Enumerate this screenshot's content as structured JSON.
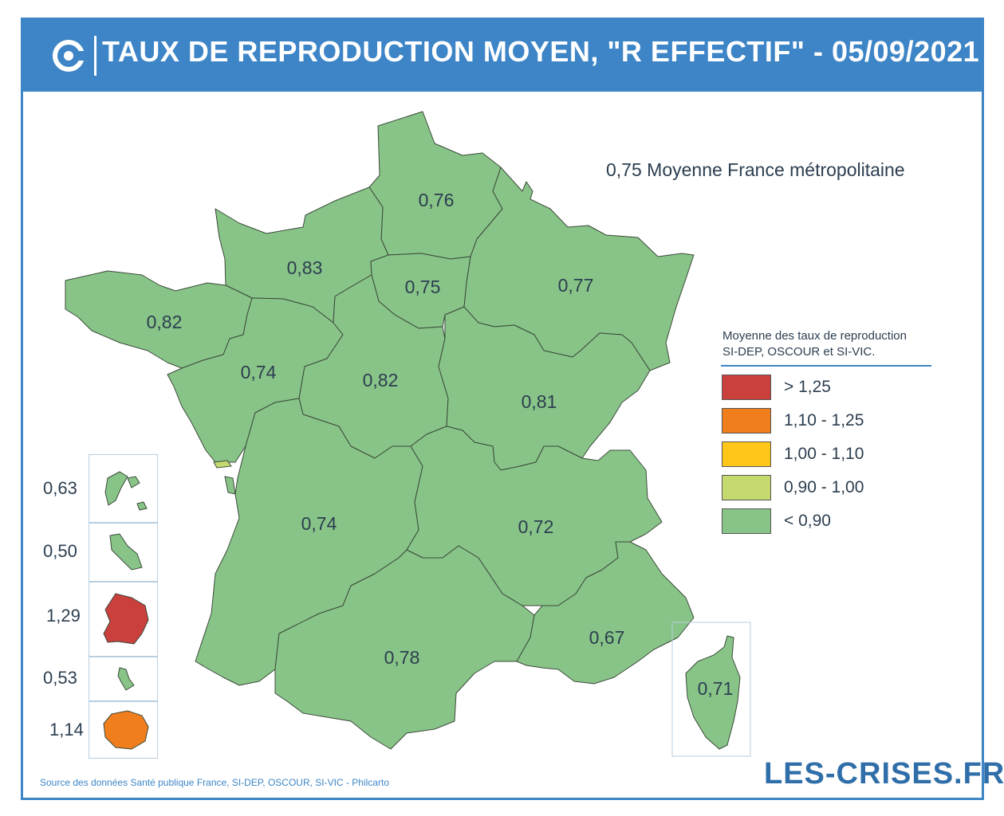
{
  "header": {
    "title": "TAUX DE REPRODUCTION MOYEN, \"R EFFECTIF\" - 05/09/2021"
  },
  "national_average": "0,75 Moyenne France métropolitaine",
  "regions": [
    {
      "name": "Hauts-de-France",
      "value": "0,76",
      "category": "< 0,90"
    },
    {
      "name": "Normandie",
      "value": "0,83",
      "category": "< 0,90"
    },
    {
      "name": "Île-de-France",
      "value": "0,75",
      "category": "< 0,90"
    },
    {
      "name": "Grand Est",
      "value": "0,77",
      "category": "< 0,90"
    },
    {
      "name": "Bretagne",
      "value": "0,82",
      "category": "< 0,90"
    },
    {
      "name": "Pays de la Loire",
      "value": "0,74",
      "category": "< 0,90"
    },
    {
      "name": "Centre-Val de Loire",
      "value": "0,82",
      "category": "< 0,90"
    },
    {
      "name": "Bourgogne-Franche-Comté",
      "value": "0,81",
      "category": "< 0,90"
    },
    {
      "name": "Nouvelle-Aquitaine",
      "value": "0,74",
      "category": "< 0,90"
    },
    {
      "name": "Auvergne-Rhône-Alpes",
      "value": "0,72",
      "category": "< 0,90"
    },
    {
      "name": "Occitanie",
      "value": "0,78",
      "category": "< 0,90"
    },
    {
      "name": "Provence-Alpes-Côte d'Azur",
      "value": "0,67",
      "category": "< 0,90"
    },
    {
      "name": "Corse",
      "value": "0,71",
      "category": "< 0,90"
    }
  ],
  "overseas": [
    {
      "name": "Guadeloupe",
      "value": "0,63",
      "category": "< 0,90"
    },
    {
      "name": "Martinique",
      "value": "0,50",
      "category": "< 0,90"
    },
    {
      "name": "Guyane",
      "value": "1,29",
      "category": "> 1,25"
    },
    {
      "name": "Mayotte",
      "value": "0,53",
      "category": "< 0,90"
    },
    {
      "name": "La Réunion",
      "value": "1,14",
      "category": "1,10 - 1,25"
    }
  ],
  "legend": {
    "title_line1": "Moyenne des taux de reproduction",
    "title_line2": "SI-DEP, OSCOUR et SI-VIC.",
    "items": [
      {
        "label": "> 1,25",
        "color": "#c9403d"
      },
      {
        "label": "1,10 - 1,25",
        "color": "#f07e1d"
      },
      {
        "label": "1,00 - 1,10",
        "color": "#ffc61a"
      },
      {
        "label": "0,90 - 1,00",
        "color": "#c5da6e"
      },
      {
        "label": "< 0,90",
        "color": "#88c487"
      }
    ]
  },
  "source": "Source des données Santé publique France, SI-DEP, OSCOUR, SI-VIC - Philcarto",
  "brand": "LES-CRISES.FR",
  "colors": {
    "header": "#3d85c6",
    "region_fill": "#88c487",
    "region_stroke": "#3b4a3b"
  }
}
